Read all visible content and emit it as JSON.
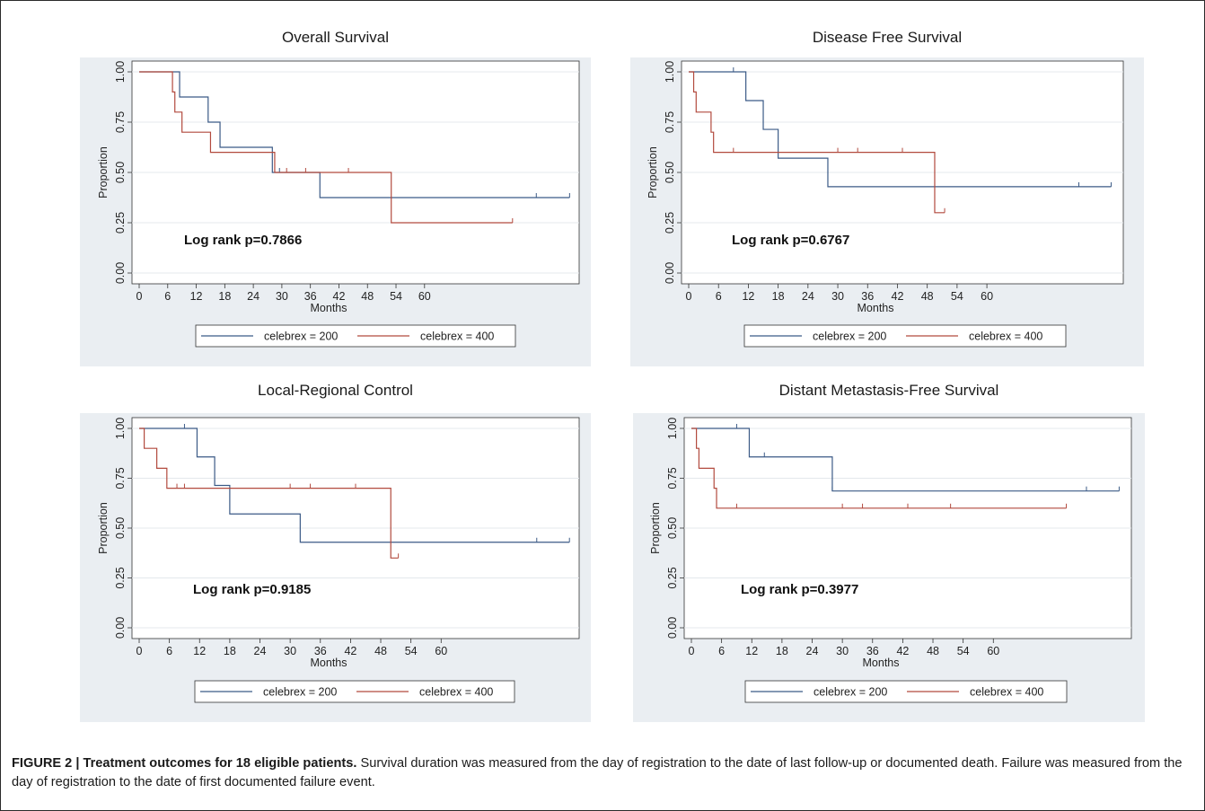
{
  "figure": {
    "caption_label": "FIGURE 2 | Treatment outcomes for 18 eligible patients.",
    "caption_text": " Survival duration was measured from the day of registration to the date of last follow-up or documented death. Failure was measured from the day of registration to the date of first documented failure event."
  },
  "colors": {
    "celebrex_200": "#3b5a86",
    "celebrex_400": "#b24a3e",
    "panel_bg": "#eaeef2"
  },
  "chart_data": [
    {
      "type": "line",
      "title": "Overall Survival",
      "xlabel": "Months",
      "ylabel": "Proportion",
      "x_ticks": [
        0,
        6,
        12,
        18,
        24,
        30,
        36,
        42,
        48,
        54,
        60
      ],
      "y_ticks": [
        "0.00",
        "0.25",
        "0.50",
        "0.75",
        "1.00"
      ],
      "xlim": [
        0,
        91
      ],
      "ylim": [
        0,
        1
      ],
      "annotation": "Log rank p=0.7866",
      "legend": [
        "celebrex = 200",
        "celebrex = 400"
      ],
      "series": [
        {
          "name": "celebrex = 200",
          "steps": [
            [
              0,
              1
            ],
            [
              8.5,
              0.875
            ],
            [
              14.5,
              0.75
            ],
            [
              17,
              0.625
            ],
            [
              28,
              0.5
            ],
            [
              38,
              0.375
            ],
            [
              90.5,
              0.375
            ]
          ],
          "censors": [
            [
              29.5,
              0.5
            ],
            [
              83.5,
              0.375
            ],
            [
              90.5,
              0.375
            ]
          ]
        },
        {
          "name": "celebrex = 400",
          "steps": [
            [
              0,
              1
            ],
            [
              7,
              0.9
            ],
            [
              7.5,
              0.8
            ],
            [
              9,
              0.7
            ],
            [
              15,
              0.6
            ],
            [
              28.5,
              0.5
            ],
            [
              53,
              0.25
            ],
            [
              78.5,
              0.25
            ]
          ],
          "censors": [
            [
              31,
              0.5
            ],
            [
              35,
              0.5
            ],
            [
              44,
              0.5
            ],
            [
              78.5,
              0.25
            ]
          ]
        }
      ]
    },
    {
      "type": "line",
      "title": "Disease Free Survival",
      "xlabel": "Months",
      "ylabel": "Proportion",
      "x_ticks": [
        0,
        6,
        12,
        18,
        24,
        30,
        36,
        42,
        48,
        54,
        60
      ],
      "y_ticks": [
        "0.00",
        "0.25",
        "0.50",
        "0.75",
        "1.00"
      ],
      "xlim": [
        0,
        86
      ],
      "ylim": [
        0,
        1
      ],
      "annotation": "Log rank p=0.6767",
      "legend": [
        "celebrex = 200",
        "celebrex = 400"
      ],
      "series": [
        {
          "name": "celebrex = 200",
          "steps": [
            [
              0,
              1
            ],
            [
              11.5,
              0.857
            ],
            [
              15,
              0.714
            ],
            [
              18,
              0.571
            ],
            [
              28,
              0.429
            ],
            [
              85,
              0.429
            ]
          ],
          "censors": [
            [
              9,
              1
            ],
            [
              78.5,
              0.429
            ],
            [
              85,
              0.429
            ]
          ]
        },
        {
          "name": "celebrex = 400",
          "steps": [
            [
              0,
              1
            ],
            [
              1,
              0.9
            ],
            [
              1.5,
              0.8
            ],
            [
              4.5,
              0.7
            ],
            [
              5,
              0.6
            ],
            [
              49.5,
              0.3
            ],
            [
              51.5,
              0.3
            ]
          ],
          "censors": [
            [
              9,
              0.6
            ],
            [
              30,
              0.6
            ],
            [
              34,
              0.6
            ],
            [
              43,
              0.6
            ],
            [
              51.5,
              0.3
            ]
          ]
        }
      ]
    },
    {
      "type": "line",
      "title": "Local-Regional Control",
      "xlabel": "Months",
      "ylabel": "Proportion",
      "x_ticks": [
        0,
        6,
        12,
        18,
        24,
        30,
        36,
        42,
        48,
        54,
        60
      ],
      "y_ticks": [
        "0.00",
        "0.25",
        "0.50",
        "0.75",
        "1.00"
      ],
      "xlim": [
        0,
        86
      ],
      "ylim": [
        0,
        1
      ],
      "annotation": "Log rank p=0.9185",
      "legend": [
        "celebrex = 200",
        "celebrex = 400"
      ],
      "series": [
        {
          "name": "celebrex = 200",
          "steps": [
            [
              0,
              1
            ],
            [
              11.5,
              0.857
            ],
            [
              15,
              0.714
            ],
            [
              18,
              0.571
            ],
            [
              32,
              0.429
            ],
            [
              85.5,
              0.429
            ]
          ],
          "censors": [
            [
              9,
              1
            ],
            [
              79,
              0.429
            ],
            [
              85.5,
              0.429
            ]
          ]
        },
        {
          "name": "celebrex = 400",
          "steps": [
            [
              0,
              1
            ],
            [
              1,
              0.9
            ],
            [
              3.5,
              0.8
            ],
            [
              5.5,
              0.7
            ],
            [
              50,
              0.35
            ],
            [
              51.5,
              0.35
            ]
          ],
          "censors": [
            [
              7.5,
              0.7
            ],
            [
              9,
              0.7
            ],
            [
              30,
              0.7
            ],
            [
              34,
              0.7
            ],
            [
              43,
              0.7
            ],
            [
              51.5,
              0.35
            ]
          ]
        }
      ]
    },
    {
      "type": "line",
      "title": "Distant Metastasis-Free Survival",
      "xlabel": "Months",
      "ylabel": "Proportion",
      "x_ticks": [
        0,
        6,
        12,
        18,
        24,
        30,
        36,
        42,
        48,
        54,
        60
      ],
      "y_ticks": [
        "0.00",
        "0.25",
        "0.50",
        "0.75",
        "1.00"
      ],
      "xlim": [
        0,
        86
      ],
      "ylim": [
        0,
        1
      ],
      "annotation": "Log rank p=0.3977",
      "legend": [
        "celebrex = 200",
        "celebrex = 400"
      ],
      "series": [
        {
          "name": "celebrex = 200",
          "steps": [
            [
              0,
              1
            ],
            [
              11.5,
              0.857
            ],
            [
              28,
              0.686
            ],
            [
              85,
              0.686
            ]
          ],
          "censors": [
            [
              9,
              1
            ],
            [
              14.5,
              0.857
            ],
            [
              28,
              0.686
            ],
            [
              78.5,
              0.686
            ],
            [
              85,
              0.686
            ]
          ]
        },
        {
          "name": "celebrex = 400",
          "steps": [
            [
              0,
              1
            ],
            [
              1,
              0.9
            ],
            [
              1.5,
              0.8
            ],
            [
              4.5,
              0.7
            ],
            [
              5,
              0.6
            ],
            [
              74.5,
              0.6
            ]
          ],
          "censors": [
            [
              9,
              0.6
            ],
            [
              30,
              0.6
            ],
            [
              34,
              0.6
            ],
            [
              43,
              0.6
            ],
            [
              51.5,
              0.6
            ],
            [
              74.5,
              0.6
            ]
          ]
        }
      ]
    }
  ]
}
